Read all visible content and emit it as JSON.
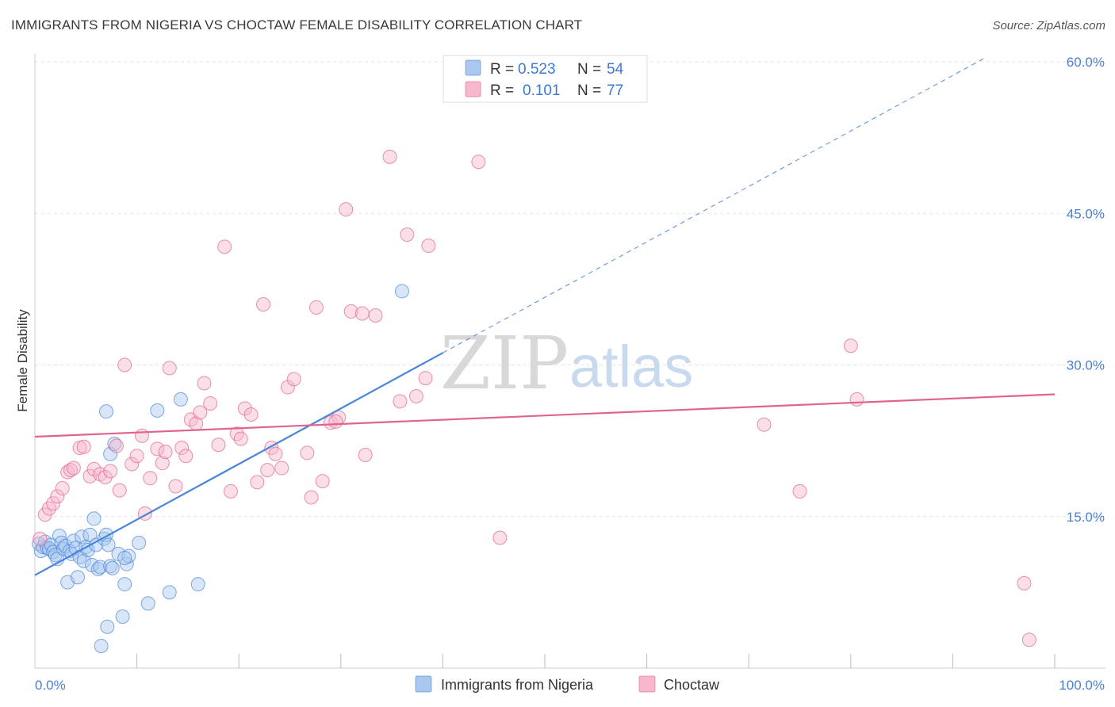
{
  "title": "IMMIGRANTS FROM NIGERIA VS CHOCTAW FEMALE DISABILITY CORRELATION CHART",
  "source": "Source: ZipAtlas.com",
  "watermark": {
    "zip": "ZIP",
    "atlas": "atlas"
  },
  "legend_top": {
    "r_label": "R =",
    "n_label": "N =",
    "rows": [
      {
        "r": "0.523",
        "n": "54",
        "color": "#a9c8f0"
      },
      {
        "r": "0.101",
        "n": "77",
        "color": "#f7b8cb"
      }
    ]
  },
  "chart_data": {
    "type": "scatter",
    "title": "IMMIGRANTS FROM NIGERIA VS CHOCTAW FEMALE DISABILITY CORRELATION CHART",
    "xlabel": "",
    "ylabel": "Female Disability",
    "xlim": [
      0,
      100
    ],
    "ylim": [
      0,
      60
    ],
    "x_tick_labels": [
      "0.0%",
      "100.0%"
    ],
    "y_ticks": [
      15,
      30,
      45,
      60
    ],
    "y_tick_labels": [
      "15.0%",
      "30.0%",
      "45.0%",
      "60.0%"
    ],
    "grid": true,
    "legend_placement": "bottom",
    "series": [
      {
        "name": "Immigrants from Nigeria",
        "color": "#4a86d8",
        "fill": "#a9c8f0",
        "trend": {
          "x0": 0,
          "y0": 9.2,
          "x1": 40,
          "y1": 31.2,
          "dashed_to_x": 93,
          "dashed_to_y": 60.3
        },
        "points": [
          [
            0.4,
            12.3
          ],
          [
            0.6,
            11.6
          ],
          [
            0.8,
            12.0
          ],
          [
            1.0,
            12.5
          ],
          [
            1.2,
            11.9
          ],
          [
            1.4,
            11.8
          ],
          [
            1.6,
            12.2
          ],
          [
            1.8,
            11.5
          ],
          [
            2.0,
            11.2
          ],
          [
            2.2,
            10.8
          ],
          [
            2.4,
            13.1
          ],
          [
            2.6,
            12.4
          ],
          [
            2.8,
            11.8
          ],
          [
            3.0,
            12.1
          ],
          [
            3.2,
            8.5
          ],
          [
            3.4,
            11.6
          ],
          [
            3.6,
            11.3
          ],
          [
            3.8,
            12.6
          ],
          [
            4.0,
            11.9
          ],
          [
            4.2,
            9.0
          ],
          [
            4.4,
            11.0
          ],
          [
            4.6,
            13.0
          ],
          [
            4.8,
            10.6
          ],
          [
            5.0,
            12.0
          ],
          [
            5.2,
            11.7
          ],
          [
            5.4,
            13.2
          ],
          [
            5.6,
            10.2
          ],
          [
            5.8,
            14.8
          ],
          [
            6.0,
            12.2
          ],
          [
            6.2,
            9.8
          ],
          [
            6.4,
            10.0
          ],
          [
            6.8,
            12.8
          ],
          [
            7.0,
            13.2
          ],
          [
            7.2,
            12.2
          ],
          [
            7.4,
            10.1
          ],
          [
            7.6,
            9.9
          ],
          [
            7.1,
            4.1
          ],
          [
            6.5,
            2.2
          ],
          [
            7.0,
            25.4
          ],
          [
            7.4,
            21.2
          ],
          [
            7.8,
            22.2
          ],
          [
            8.2,
            11.3
          ],
          [
            8.6,
            5.1
          ],
          [
            8.8,
            8.3
          ],
          [
            9.0,
            10.3
          ],
          [
            9.2,
            11.1
          ],
          [
            8.8,
            10.9
          ],
          [
            10.2,
            12.4
          ],
          [
            11.1,
            6.4
          ],
          [
            12.0,
            25.5
          ],
          [
            13.2,
            7.5
          ],
          [
            14.3,
            26.6
          ],
          [
            16.0,
            8.3
          ],
          [
            36.0,
            37.3
          ]
        ]
      },
      {
        "name": "Choctaw",
        "color": "#e0648f",
        "fill": "#f7b8cb",
        "trend": {
          "x0": 0,
          "y0": 22.9,
          "x1": 100,
          "y1": 27.1
        },
        "points": [
          [
            0.5,
            12.8
          ],
          [
            1.0,
            15.2
          ],
          [
            1.4,
            15.8
          ],
          [
            1.8,
            16.3
          ],
          [
            2.2,
            17.0
          ],
          [
            2.7,
            17.8
          ],
          [
            3.2,
            19.4
          ],
          [
            3.5,
            19.6
          ],
          [
            3.8,
            19.8
          ],
          [
            4.4,
            21.8
          ],
          [
            4.8,
            21.9
          ],
          [
            5.4,
            19.0
          ],
          [
            5.8,
            19.7
          ],
          [
            6.4,
            19.2
          ],
          [
            6.9,
            18.9
          ],
          [
            7.4,
            19.5
          ],
          [
            8.0,
            22.0
          ],
          [
            8.3,
            17.6
          ],
          [
            8.8,
            30.0
          ],
          [
            9.5,
            20.2
          ],
          [
            10.0,
            21.0
          ],
          [
            10.5,
            23.0
          ],
          [
            10.8,
            15.3
          ],
          [
            11.3,
            18.8
          ],
          [
            12.0,
            21.7
          ],
          [
            12.5,
            20.3
          ],
          [
            12.8,
            21.4
          ],
          [
            13.2,
            29.7
          ],
          [
            13.8,
            18.0
          ],
          [
            14.4,
            21.8
          ],
          [
            14.8,
            21.0
          ],
          [
            15.3,
            24.6
          ],
          [
            15.8,
            24.2
          ],
          [
            16.2,
            25.3
          ],
          [
            16.6,
            28.2
          ],
          [
            17.2,
            26.2
          ],
          [
            18.0,
            22.1
          ],
          [
            18.6,
            41.7
          ],
          [
            19.2,
            17.5
          ],
          [
            19.8,
            23.2
          ],
          [
            20.2,
            22.7
          ],
          [
            20.6,
            25.7
          ],
          [
            21.2,
            25.1
          ],
          [
            21.8,
            18.4
          ],
          [
            22.4,
            36.0
          ],
          [
            22.8,
            19.6
          ],
          [
            23.2,
            21.8
          ],
          [
            23.6,
            21.2
          ],
          [
            24.2,
            19.8
          ],
          [
            24.8,
            27.8
          ],
          [
            25.4,
            28.6
          ],
          [
            26.7,
            21.3
          ],
          [
            27.1,
            16.9
          ],
          [
            27.6,
            35.7
          ],
          [
            28.2,
            18.5
          ],
          [
            29.0,
            24.3
          ],
          [
            29.8,
            24.8
          ],
          [
            30.5,
            45.4
          ],
          [
            31.0,
            35.3
          ],
          [
            32.1,
            35.1
          ],
          [
            32.4,
            21.1
          ],
          [
            33.4,
            34.9
          ],
          [
            34.8,
            50.6
          ],
          [
            35.8,
            26.4
          ],
          [
            36.5,
            42.9
          ],
          [
            37.4,
            26.9
          ],
          [
            38.3,
            28.7
          ],
          [
            38.6,
            41.8
          ],
          [
            43.5,
            50.1
          ],
          [
            45.6,
            12.9
          ],
          [
            71.5,
            24.1
          ],
          [
            75.0,
            17.5
          ],
          [
            80.0,
            31.9
          ],
          [
            80.6,
            26.6
          ],
          [
            97.0,
            8.4
          ],
          [
            97.5,
            2.8
          ],
          [
            29.5,
            24.4
          ]
        ]
      }
    ]
  }
}
